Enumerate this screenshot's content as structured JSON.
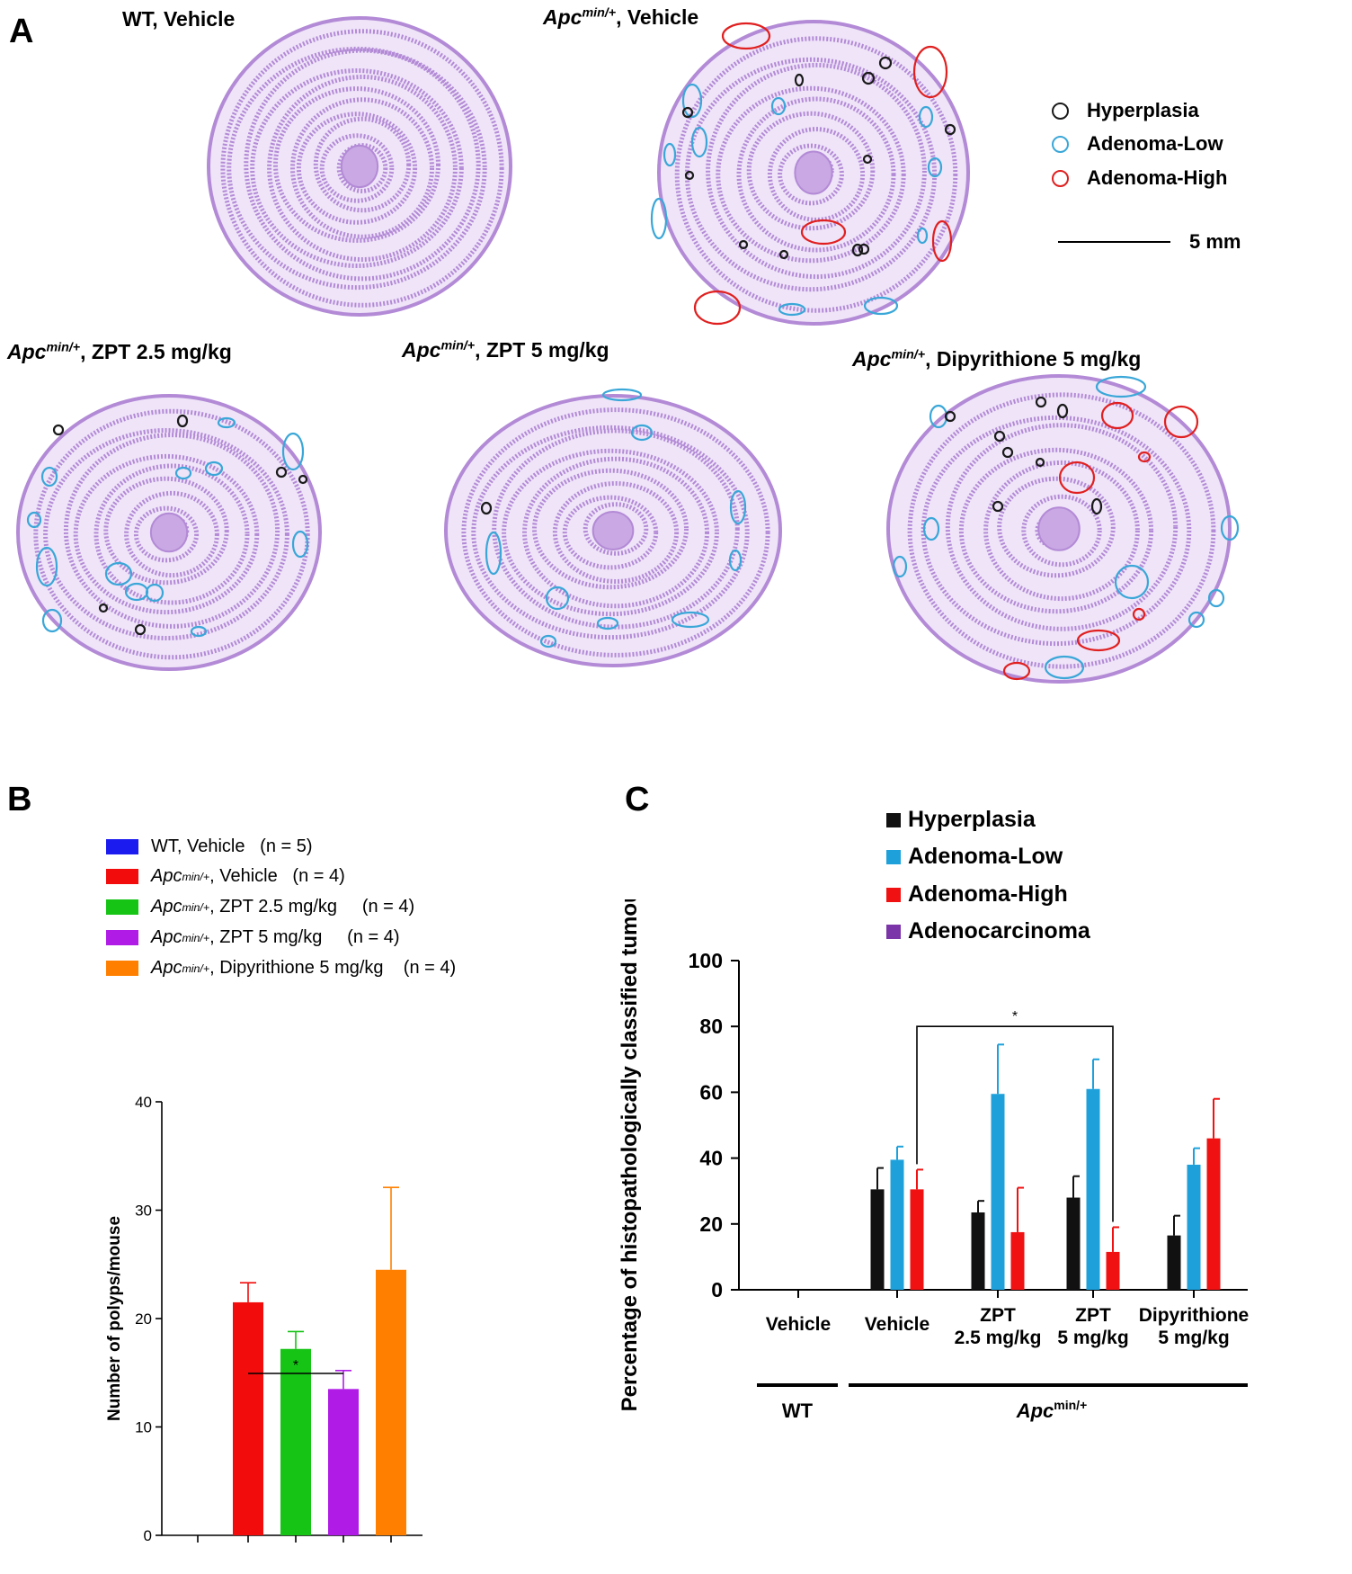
{
  "panel_a": {
    "label": "A",
    "sections": [
      {
        "prefix": "",
        "main": "WT, Vehicle"
      },
      {
        "prefix": "Apc",
        "sup": "min/+",
        "main": ", Vehicle"
      },
      {
        "prefix": "Apc",
        "sup": "min/+",
        "main": ", ZPT 2.5 mg/kg"
      },
      {
        "prefix": "Apc",
        "sup": "min/+",
        "main": ", ZPT 5 mg/kg"
      },
      {
        "prefix": "Apc",
        "sup": "min/+",
        "main": ", Dipyrithione 5 mg/kg"
      }
    ],
    "legend": [
      {
        "label": "Hyperplasia",
        "color": "#1a1a1a"
      },
      {
        "label": "Adenoma-Low",
        "color": "#3aa7d8"
      },
      {
        "label": "Adenoma-High",
        "color": "#e02020"
      }
    ],
    "scale_bar": "5 mm",
    "tissue_color": "#b38ad6"
  },
  "panel_b": {
    "label": "B",
    "legend": [
      {
        "prefix": "WT, Vehicle",
        "sup": "",
        "main": "",
        "n": "(n = 5)",
        "color": "#1b1bf0"
      },
      {
        "prefix": "Apc",
        "sup": "min/+",
        "main": ", Vehicle",
        "n": "(n = 4)",
        "color": "#f20c0c"
      },
      {
        "prefix": "Apc",
        "sup": "min/+",
        "main": ", ZPT 2.5 mg/kg",
        "n": "(n = 4)",
        "color": "#16c416"
      },
      {
        "prefix": "Apc",
        "sup": "min/+",
        "main": ", ZPT 5 mg/kg",
        "n": "(n = 4)",
        "color": "#b01ce6"
      },
      {
        "prefix": "Apc",
        "sup": "min/+",
        "main": ", Dipyrithione 5 mg/kg",
        "n": "(n = 4)",
        "color": "#ff8000"
      }
    ]
  },
  "panel_c": {
    "label": "C",
    "legend": [
      {
        "label": "Hyperplasia",
        "color": "#111111"
      },
      {
        "label": "Adenoma-Low",
        "color": "#1ea1db"
      },
      {
        "label": "Adenoma-High",
        "color": "#f01212"
      },
      {
        "label": "Adenocarcinoma",
        "color": "#7b35a8"
      }
    ]
  },
  "chart_data": [
    {
      "type": "bar",
      "title": "",
      "xlabel": "",
      "ylabel": "Number of polyps/mouse",
      "ylim": [
        0,
        40
      ],
      "yticks": [
        0,
        10,
        20,
        30,
        40
      ],
      "categories": [
        "WT, Vehicle",
        "Apcmin/+, Vehicle",
        "Apcmin/+, ZPT 2.5 mg/kg",
        "Apcmin/+, ZPT 5 mg/kg",
        "Apcmin/+, Dipyrithione 5 mg/kg"
      ],
      "values": [
        0,
        21.5,
        17.2,
        13.5,
        24.5
      ],
      "errors": [
        0,
        1.8,
        1.6,
        1.7,
        7.6
      ],
      "colors": [
        "#1b1bf0",
        "#f20c0c",
        "#16c416",
        "#b01ce6",
        "#ff8000"
      ],
      "significance": [
        {
          "from": 1,
          "to": 3,
          "label": "*"
        }
      ],
      "grid": false
    },
    {
      "type": "bar",
      "title": "",
      "xlabel": "",
      "ylabel": "Percentage of histopathologically classified tumours",
      "ylim": [
        0,
        100
      ],
      "yticks": [
        0,
        20,
        40,
        60,
        80,
        100
      ],
      "categories": [
        "Vehicle",
        "Vehicle",
        "ZPT 2.5 mg/kg",
        "ZPT 5 mg/kg",
        "Dipyrithione 5 mg/kg"
      ],
      "category_lines": [
        [
          "Vehicle"
        ],
        [
          "Vehicle"
        ],
        [
          "ZPT",
          "2.5 mg/kg"
        ],
        [
          "ZPT",
          "5 mg/kg"
        ],
        [
          "Dipyrithione",
          "5 mg/kg"
        ]
      ],
      "series": [
        {
          "name": "Hyperplasia",
          "values": [
            0,
            30.5,
            23.5,
            28,
            16.5
          ],
          "errors": [
            0,
            6.5,
            3.5,
            6.5,
            6
          ],
          "color": "#111111"
        },
        {
          "name": "Adenoma-Low",
          "values": [
            0,
            39.5,
            59.5,
            61,
            38
          ],
          "errors": [
            0,
            4,
            15,
            9,
            5
          ],
          "color": "#1ea1db"
        },
        {
          "name": "Adenoma-High",
          "values": [
            0,
            30.5,
            17.5,
            11.5,
            46
          ],
          "errors": [
            0,
            6,
            13.5,
            7.5,
            12
          ],
          "color": "#f01212"
        },
        {
          "name": "Adenocarcinoma",
          "values": [
            0,
            0,
            0,
            0,
            0
          ],
          "errors": [
            0,
            0,
            0,
            0,
            0
          ],
          "color": "#7b35a8"
        }
      ],
      "groups": [
        {
          "label": "WT",
          "from": 0,
          "to": 0
        },
        {
          "label": "Apcmin/+",
          "prefix": "Apc",
          "sup": "min/+",
          "from": 1,
          "to": 4
        }
      ],
      "significance": [
        {
          "from_category": 1,
          "from_series": 2,
          "to_category": 3,
          "to_series": 2,
          "label": "*"
        }
      ],
      "legend_position": "top",
      "grid": false
    }
  ]
}
